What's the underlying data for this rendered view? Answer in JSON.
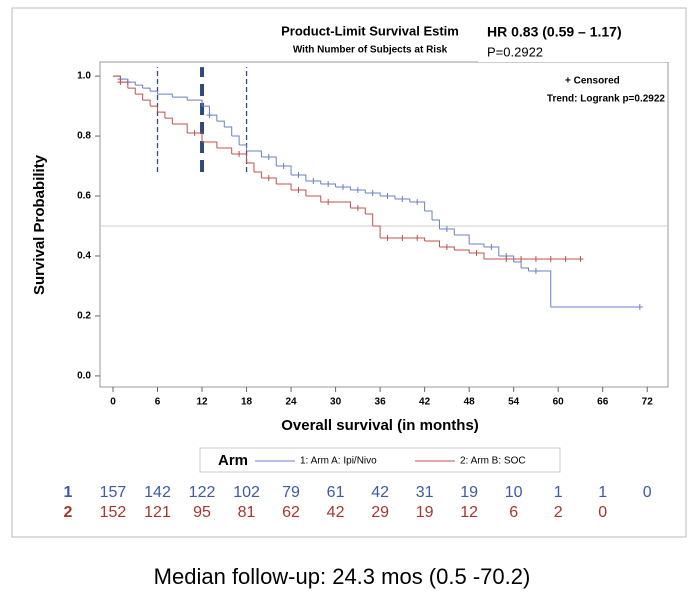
{
  "chart_data": {
    "type": "step",
    "title": "Product-Limit Survival Estim",
    "subtitle": "With Number of Subjects at Risk",
    "x_label": "Overall survival (in months)",
    "y_label": "Survival Probability",
    "xlim": [
      -1.75,
      74.8
    ],
    "ylim": [
      -0.037,
      1.047
    ],
    "xticks": [
      0,
      6,
      12,
      18,
      24,
      30,
      36,
      42,
      48,
      54,
      60,
      66,
      72
    ],
    "yticks": [
      {
        "value": 0,
        "label": "0.0"
      },
      {
        "value": 0.2,
        "label": "0.2"
      },
      {
        "value": 0.4,
        "label": "0.4"
      },
      {
        "value": 0.6,
        "label": "0.6"
      },
      {
        "value": 0.8,
        "label": "0.8"
      },
      {
        "value": 1,
        "label": "1.0"
      }
    ],
    "hline": 0.5,
    "vlines": [
      {
        "x": 6,
        "ymin": 0.68,
        "ymax": 1.03,
        "style": "dashed"
      },
      {
        "x": 12,
        "ymin": 0.68,
        "ymax": 1.03,
        "style": "thick-dashed"
      },
      {
        "x": 18,
        "ymin": 0.68,
        "ymax": 1.03,
        "style": "dashed"
      }
    ],
    "legend_title": "Arm",
    "series": [
      {
        "name": "1: Arm A: Ipi/Nivo",
        "color": "#6a7fc4",
        "x": [
          0,
          1,
          2,
          3,
          4,
          5,
          6,
          8,
          10,
          12,
          13,
          14,
          15,
          16,
          17,
          18,
          20,
          22,
          24,
          26,
          28,
          30,
          32,
          34,
          36,
          38,
          40,
          42,
          43,
          44,
          46,
          48,
          50,
          52,
          54,
          55,
          56,
          59,
          71
        ],
        "values": [
          1.0,
          0.99,
          0.98,
          0.97,
          0.96,
          0.95,
          0.94,
          0.93,
          0.92,
          0.9,
          0.87,
          0.85,
          0.83,
          0.8,
          0.77,
          0.75,
          0.73,
          0.7,
          0.67,
          0.65,
          0.64,
          0.63,
          0.62,
          0.61,
          0.6,
          0.59,
          0.58,
          0.55,
          0.52,
          0.49,
          0.47,
          0.44,
          0.43,
          0.4,
          0.38,
          0.36,
          0.35,
          0.23,
          0.23
        ],
        "censored_x": [
          1,
          2,
          13,
          21,
          23,
          25,
          27,
          29,
          31,
          33,
          35,
          37,
          39,
          41,
          45,
          51,
          53,
          57,
          71
        ]
      },
      {
        "name": "2: Arm B: SOC",
        "color": "#c0504d",
        "x": [
          0,
          1,
          2,
          3,
          4,
          5,
          6,
          7,
          8,
          10,
          12,
          14,
          16,
          18,
          19,
          20,
          22,
          24,
          26,
          28,
          32,
          34,
          35,
          36,
          42,
          44,
          46,
          48,
          50,
          63
        ],
        "values": [
          1.0,
          0.98,
          0.96,
          0.94,
          0.92,
          0.9,
          0.88,
          0.86,
          0.84,
          0.81,
          0.78,
          0.76,
          0.74,
          0.71,
          0.68,
          0.66,
          0.64,
          0.62,
          0.6,
          0.58,
          0.56,
          0.54,
          0.5,
          0.46,
          0.45,
          0.43,
          0.42,
          0.41,
          0.39,
          0.39
        ],
        "censored_x": [
          1,
          11,
          17,
          21,
          25,
          29,
          33,
          37,
          39,
          41,
          45,
          49,
          53,
          55,
          57,
          59,
          61,
          63
        ]
      }
    ],
    "censor_legend": "+ Censored",
    "trend_text": "Trend: Logrank p=0.2922",
    "hr_text": "HR 0.83 (0.59 – 1.17)",
    "p_text": "P=0.2922",
    "at_risk": [
      {
        "label": "1",
        "color": "#3d5aa8",
        "values": [
          157,
          142,
          122,
          102,
          79,
          61,
          42,
          31,
          19,
          10,
          1,
          1,
          0
        ]
      },
      {
        "label": "2",
        "color": "#a8352f",
        "values": [
          152,
          121,
          95,
          81,
          62,
          42,
          29,
          19,
          12,
          6,
          2,
          0
        ]
      }
    ],
    "footer": "Median follow-up: 24.3 mos (0.5 -70.2)"
  }
}
